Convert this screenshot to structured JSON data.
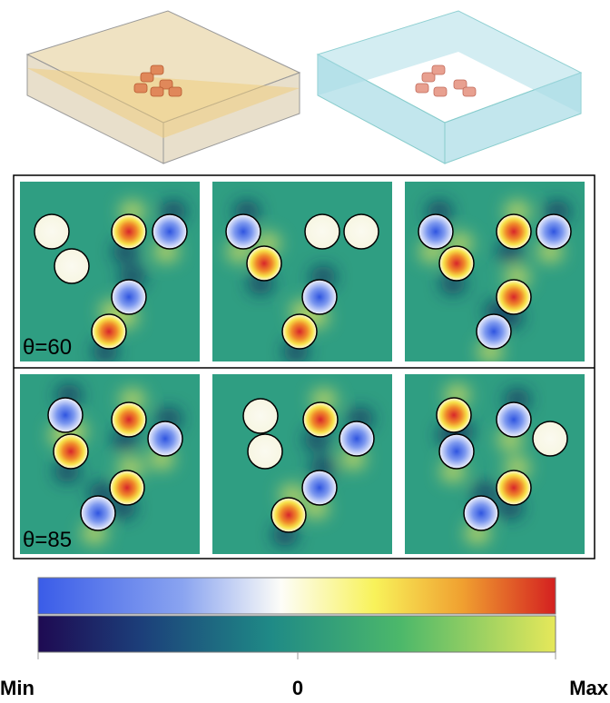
{
  "panels": {
    "rows": [
      {
        "label": "θ=60"
      },
      {
        "label": "θ=85"
      }
    ]
  },
  "colorbar": {
    "min_label": "Min",
    "zero_label": "0",
    "max_label": "Max"
  }
}
